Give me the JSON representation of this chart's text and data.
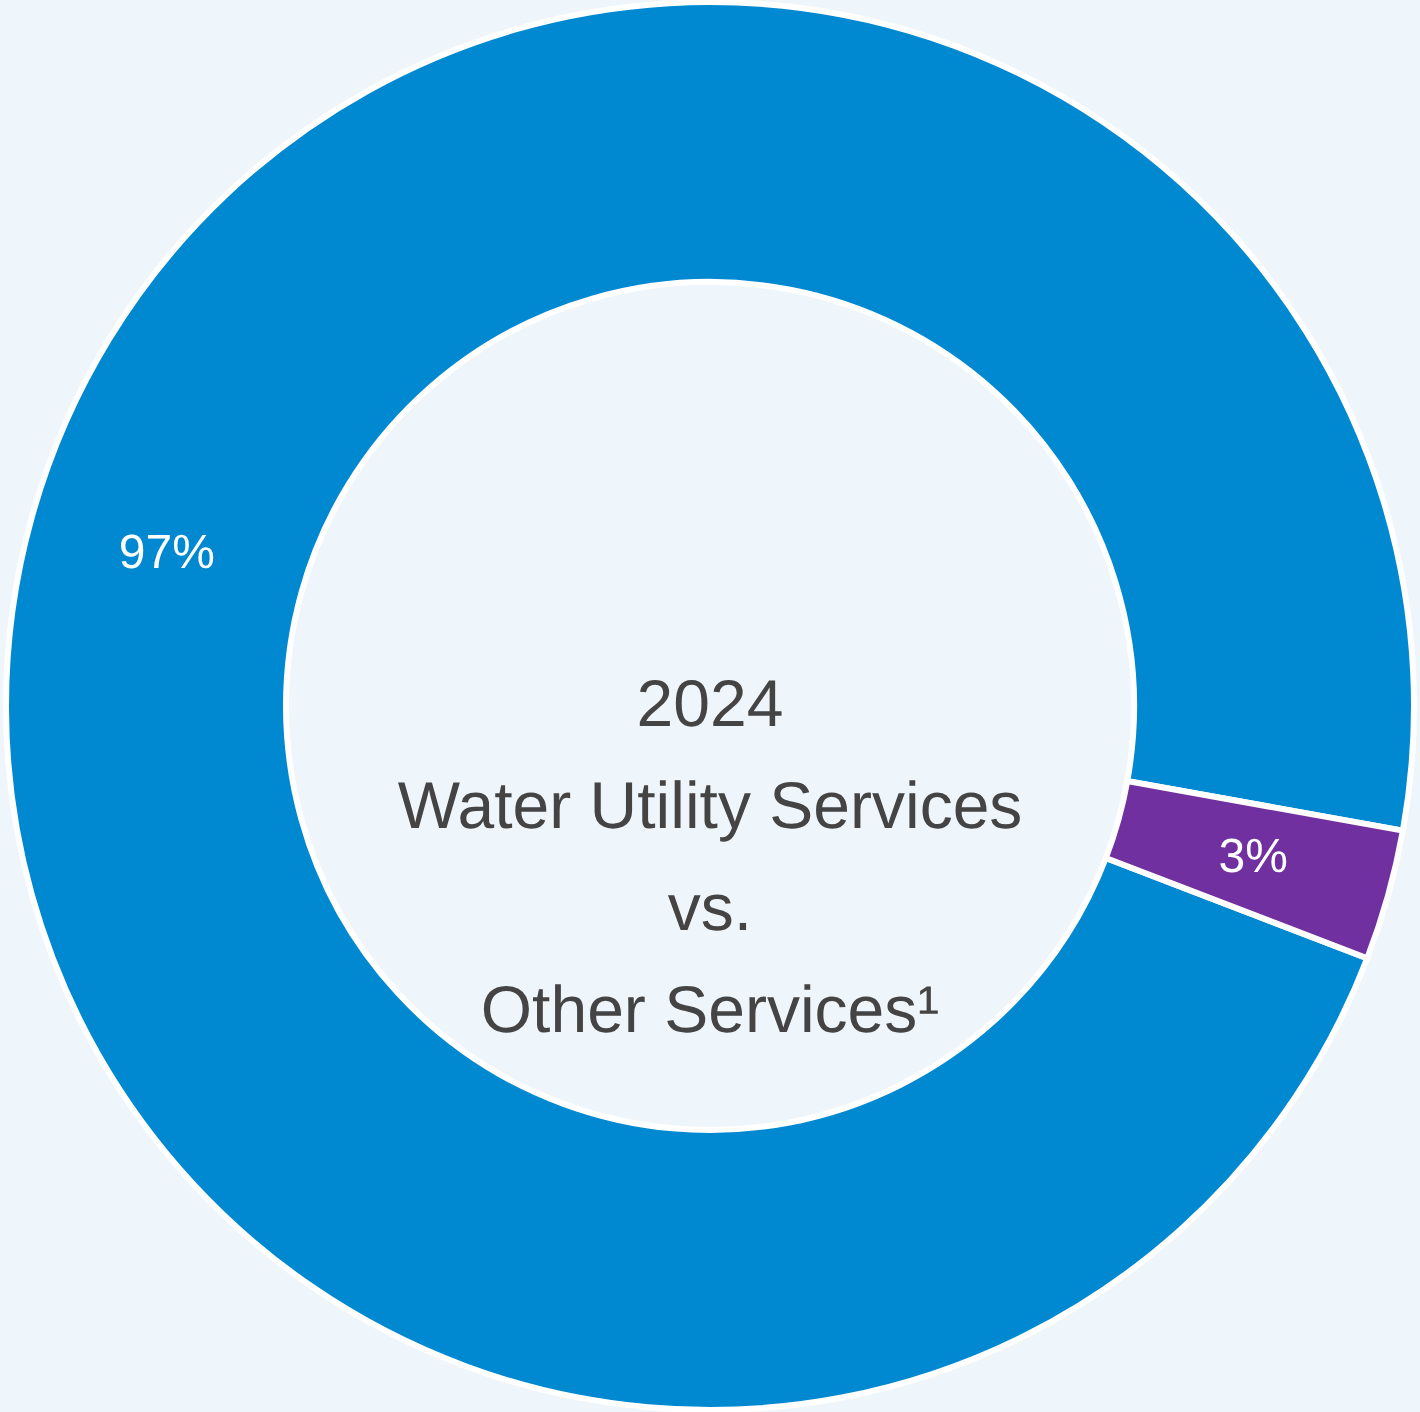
{
  "chart_data": {
    "type": "donut",
    "title": "2024\nWater Utility Services\nvs.\nOther Services¹",
    "categories": [
      null,
      null
    ],
    "values": [
      97,
      3
    ],
    "colors": [
      "#0088d1",
      "#7030a0"
    ],
    "value_labels": [
      "97%",
      "3%"
    ]
  }
}
